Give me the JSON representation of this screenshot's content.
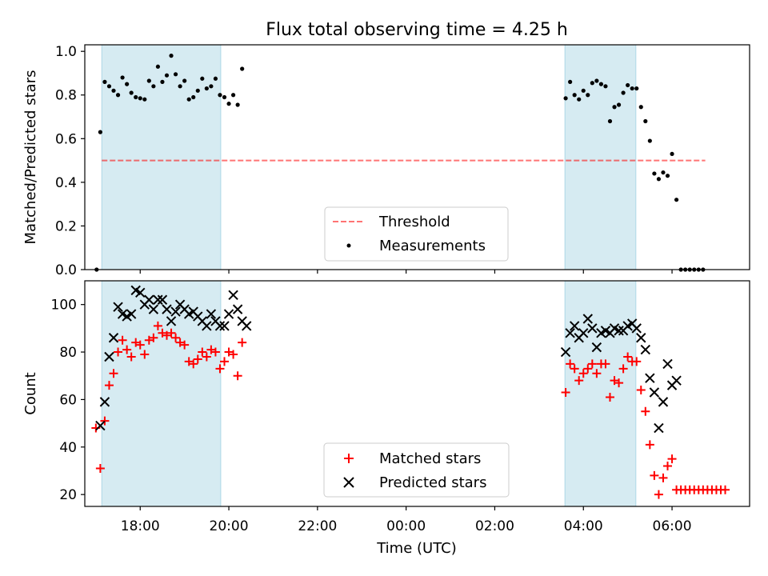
{
  "title": "Flux total observing time = 4.25 h",
  "chart_data": [
    {
      "type": "scatter",
      "ylabel": "Matched/Predicted stars",
      "xlabel": "",
      "xlim": [
        "16:45",
        "31:45"
      ],
      "ylim": [
        0,
        1.03
      ],
      "y_ticks": [
        "0.0",
        "0.2",
        "0.4",
        "0.6",
        "0.8",
        "1.0"
      ],
      "shaded_spans": [
        [
          "17:08",
          "19:49"
        ],
        [
          "27:35",
          "29:11"
        ]
      ],
      "threshold": 0.5,
      "threshold_range": [
        "17:08",
        "30:45"
      ],
      "legend": [
        "Threshold",
        "Measurements"
      ],
      "legend_placement": "lower center",
      "series": [
        {
          "name": "Measurements",
          "color": "#000000",
          "points": [
            [
              "17:01",
              0.0
            ],
            [
              "17:06",
              0.63
            ],
            [
              "17:12",
              0.86
            ],
            [
              "17:18",
              0.84
            ],
            [
              "17:24",
              0.82
            ],
            [
              "17:30",
              0.8
            ],
            [
              "17:36",
              0.88
            ],
            [
              "17:42",
              0.85
            ],
            [
              "17:48",
              0.81
            ],
            [
              "17:54",
              0.79
            ],
            [
              "18:00",
              0.785
            ],
            [
              "18:06",
              0.78
            ],
            [
              "18:12",
              0.865
            ],
            [
              "18:18",
              0.84
            ],
            [
              "18:24",
              0.93
            ],
            [
              "18:30",
              0.86
            ],
            [
              "18:36",
              0.89
            ],
            [
              "18:42",
              0.98
            ],
            [
              "18:48",
              0.895
            ],
            [
              "18:54",
              0.84
            ],
            [
              "19:00",
              0.865
            ],
            [
              "19:06",
              0.78
            ],
            [
              "19:12",
              0.79
            ],
            [
              "19:18",
              0.82
            ],
            [
              "19:24",
              0.875
            ],
            [
              "19:30",
              0.83
            ],
            [
              "19:36",
              0.84
            ],
            [
              "19:42",
              0.875
            ],
            [
              "19:48",
              0.8
            ],
            [
              "19:54",
              0.79
            ],
            [
              "20:00",
              0.76
            ],
            [
              "20:06",
              0.8
            ],
            [
              "20:12",
              0.755
            ],
            [
              "20:18",
              0.92
            ],
            [
              "27:36",
              0.785
            ],
            [
              "27:42",
              0.86
            ],
            [
              "27:48",
              0.8
            ],
            [
              "27:54",
              0.78
            ],
            [
              "28:00",
              0.82
            ],
            [
              "28:06",
              0.8
            ],
            [
              "28:12",
              0.855
            ],
            [
              "28:18",
              0.865
            ],
            [
              "28:24",
              0.85
            ],
            [
              "28:30",
              0.84
            ],
            [
              "28:36",
              0.68
            ],
            [
              "28:42",
              0.745
            ],
            [
              "28:48",
              0.755
            ],
            [
              "28:54",
              0.81
            ],
            [
              "29:00",
              0.845
            ],
            [
              "29:06",
              0.83
            ],
            [
              "29:12",
              0.83
            ],
            [
              "29:18",
              0.745
            ],
            [
              "29:24",
              0.68
            ],
            [
              "29:30",
              0.59
            ],
            [
              "29:36",
              0.44
            ],
            [
              "29:42",
              0.415
            ],
            [
              "29:48",
              0.445
            ],
            [
              "29:54",
              0.43
            ],
            [
              "30:00",
              0.53
            ],
            [
              "30:06",
              0.32
            ],
            [
              "30:12",
              0.0
            ],
            [
              "30:18",
              0.0
            ],
            [
              "30:24",
              0.0
            ],
            [
              "30:30",
              0.0
            ],
            [
              "30:36",
              0.0
            ],
            [
              "30:42",
              0.0
            ]
          ]
        }
      ]
    },
    {
      "type": "scatter",
      "ylabel": "Count",
      "xlabel": "Time (UTC)",
      "xlim": [
        "16:45",
        "31:45"
      ],
      "ylim": [
        15,
        110
      ],
      "y_ticks": [
        "20",
        "40",
        "60",
        "80",
        "100"
      ],
      "x_ticks": [
        "18:00",
        "20:00",
        "22:00",
        "00:00",
        "02:00",
        "04:00",
        "06:00"
      ],
      "shaded_spans": [
        [
          "17:08",
          "19:49"
        ],
        [
          "27:35",
          "29:11"
        ]
      ],
      "legend": [
        "Matched stars",
        "Predicted stars"
      ],
      "legend_placement": "lower center",
      "series": [
        {
          "name": "Matched stars",
          "color": "#ff0000",
          "points": [
            [
              "17:00",
              48
            ],
            [
              "17:06",
              31
            ],
            [
              "17:12",
              51
            ],
            [
              "17:18",
              66
            ],
            [
              "17:24",
              71
            ],
            [
              "17:30",
              80
            ],
            [
              "17:36",
              85
            ],
            [
              "17:42",
              81
            ],
            [
              "17:48",
              78
            ],
            [
              "17:54",
              84
            ],
            [
              "18:00",
              83
            ],
            [
              "18:06",
              79
            ],
            [
              "18:12",
              85
            ],
            [
              "18:18",
              86
            ],
            [
              "18:24",
              91
            ],
            [
              "18:30",
              88
            ],
            [
              "18:36",
              87
            ],
            [
              "18:42",
              88
            ],
            [
              "18:48",
              86
            ],
            [
              "18:54",
              84
            ],
            [
              "19:00",
              83
            ],
            [
              "19:06",
              76
            ],
            [
              "19:12",
              75
            ],
            [
              "19:18",
              77
            ],
            [
              "19:24",
              80
            ],
            [
              "19:30",
              78
            ],
            [
              "19:36",
              81
            ],
            [
              "19:42",
              80
            ],
            [
              "19:48",
              73
            ],
            [
              "19:54",
              76
            ],
            [
              "20:00",
              80
            ],
            [
              "20:06",
              79
            ],
            [
              "20:12",
              70
            ],
            [
              "20:18",
              84
            ],
            [
              "27:36",
              63
            ],
            [
              "27:42",
              75
            ],
            [
              "27:48",
              73
            ],
            [
              "27:54",
              68
            ],
            [
              "28:00",
              71
            ],
            [
              "28:06",
              73
            ],
            [
              "28:12",
              75
            ],
            [
              "28:18",
              71
            ],
            [
              "28:24",
              75
            ],
            [
              "28:30",
              75
            ],
            [
              "28:36",
              61
            ],
            [
              "28:42",
              68
            ],
            [
              "28:48",
              67
            ],
            [
              "28:54",
              73
            ],
            [
              "29:00",
              78
            ],
            [
              "29:06",
              76
            ],
            [
              "29:12",
              76
            ],
            [
              "29:18",
              64
            ],
            [
              "29:24",
              55
            ],
            [
              "29:30",
              41
            ],
            [
              "29:36",
              28
            ],
            [
              "29:42",
              20
            ],
            [
              "29:48",
              27
            ],
            [
              "29:54",
              32
            ],
            [
              "30:00",
              35
            ],
            [
              "30:06",
              22
            ],
            [
              "30:12",
              22
            ],
            [
              "30:18",
              22
            ],
            [
              "30:24",
              22
            ],
            [
              "30:30",
              22
            ],
            [
              "30:36",
              22
            ],
            [
              "30:42",
              22
            ],
            [
              "30:48",
              22
            ],
            [
              "30:54",
              22
            ],
            [
              "31:00",
              22
            ],
            [
              "31:06",
              22
            ],
            [
              "31:12",
              22
            ]
          ]
        },
        {
          "name": "Predicted stars",
          "color": "#000000",
          "points": [
            [
              "17:06",
              49
            ],
            [
              "17:12",
              59
            ],
            [
              "17:18",
              78
            ],
            [
              "17:24",
              86
            ],
            [
              "17:30",
              99
            ],
            [
              "17:36",
              96
            ],
            [
              "17:42",
              95
            ],
            [
              "17:48",
              96
            ],
            [
              "17:54",
              106
            ],
            [
              "18:00",
              105
            ],
            [
              "18:06",
              100
            ],
            [
              "18:12",
              102
            ],
            [
              "18:18",
              98
            ],
            [
              "18:24",
              102
            ],
            [
              "18:30",
              102
            ],
            [
              "18:36",
              98
            ],
            [
              "18:42",
              93
            ],
            [
              "18:48",
              97
            ],
            [
              "18:54",
              100
            ],
            [
              "19:00",
              98
            ],
            [
              "19:06",
              96
            ],
            [
              "19:12",
              97
            ],
            [
              "19:18",
              95
            ],
            [
              "19:24",
              93
            ],
            [
              "19:30",
              91
            ],
            [
              "19:36",
              96
            ],
            [
              "19:42",
              93
            ],
            [
              "19:48",
              91
            ],
            [
              "19:54",
              91
            ],
            [
              "20:00",
              96
            ],
            [
              "20:06",
              104
            ],
            [
              "20:12",
              98
            ],
            [
              "20:18",
              93
            ],
            [
              "20:24",
              91
            ],
            [
              "27:36",
              80
            ],
            [
              "27:42",
              88
            ],
            [
              "27:48",
              91
            ],
            [
              "27:54",
              86
            ],
            [
              "28:00",
              88
            ],
            [
              "28:06",
              94
            ],
            [
              "28:12",
              90
            ],
            [
              "28:18",
              82
            ],
            [
              "28:24",
              88
            ],
            [
              "28:30",
              89
            ],
            [
              "28:36",
              88
            ],
            [
              "28:42",
              90
            ],
            [
              "28:48",
              89
            ],
            [
              "28:54",
              89
            ],
            [
              "29:00",
              91
            ],
            [
              "29:06",
              92
            ],
            [
              "29:12",
              90
            ],
            [
              "29:18",
              86
            ],
            [
              "29:24",
              81
            ],
            [
              "29:30",
              69
            ],
            [
              "29:36",
              63
            ],
            [
              "29:42",
              48
            ],
            [
              "29:48",
              59
            ],
            [
              "29:54",
              75
            ],
            [
              "30:00",
              66
            ],
            [
              "30:06",
              68
            ]
          ]
        }
      ]
    }
  ]
}
